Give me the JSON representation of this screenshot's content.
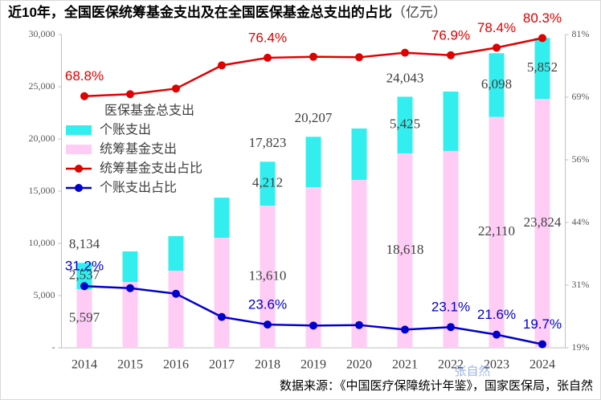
{
  "chart_data": {
    "type": "bar",
    "title": "近10年，全国医保统筹基金支出及在全国医保基金总支出的占比",
    "unit": "（亿元）",
    "source": "数据来源：《中国医疗保障统计年鉴》，国家医保局，张自然",
    "watermark": "张自然",
    "categories": [
      "2014",
      "2015",
      "2016",
      "2017",
      "2018",
      "2019",
      "2020",
      "2021",
      "2022",
      "2023",
      "2024"
    ],
    "ylim": [
      0,
      30000
    ],
    "yticks": [
      {
        "value": 0,
        "label": "-"
      },
      {
        "value": 5000,
        "label": "5,000"
      },
      {
        "value": 10000,
        "label": "10,000"
      },
      {
        "value": 15000,
        "label": "15,000"
      },
      {
        "value": 20000,
        "label": "20,000"
      },
      {
        "value": 25000,
        "label": "25,000"
      },
      {
        "value": 30000,
        "label": "30,000"
      }
    ],
    "y2lim": [
      19,
      81
    ],
    "y2ticks": [
      {
        "value": 19,
        "label": "19%"
      },
      {
        "value": 31.4,
        "label": "31%"
      },
      {
        "value": 43.8,
        "label": "44%"
      },
      {
        "value": 56.2,
        "label": "56%"
      },
      {
        "value": 68.6,
        "label": "69%"
      },
      {
        "value": 81,
        "label": "81%"
      }
    ],
    "series": [
      {
        "name": "医保基金总支出",
        "type": "total",
        "values": [
          8134,
          null,
          null,
          null,
          17823,
          20207,
          null,
          24043,
          null,
          null,
          null
        ],
        "value_labels": [
          "8,134",
          null,
          null,
          null,
          "17,823",
          "20,207",
          null,
          "24,043",
          null,
          null,
          null
        ]
      },
      {
        "name": "个账支出",
        "type": "bar",
        "color": "#33eeee",
        "values": [
          2537,
          2930,
          3310,
          3840,
          4212,
          4827,
          4920,
          5425,
          5690,
          6098,
          5852
        ],
        "value_labels": [
          "2,537",
          null,
          null,
          null,
          "4,212",
          null,
          null,
          "5,425",
          null,
          "6,098",
          "5,852"
        ]
      },
      {
        "name": "统筹基金支出",
        "type": "bar",
        "color": "#ffccf6",
        "values": [
          5597,
          6300,
          7380,
          10540,
          13610,
          15380,
          16080,
          18618,
          18850,
          22110,
          23824
        ],
        "value_labels": [
          "5,597",
          null,
          null,
          null,
          "13,610",
          null,
          null,
          "18,618",
          null,
          "22,110",
          "23,824"
        ]
      },
      {
        "name": "统筹基金支出占比",
        "type": "line",
        "axis": "y2",
        "color": "#e00000",
        "values": [
          68.8,
          69.2,
          70.3,
          74.9,
          76.4,
          76.6,
          76.5,
          77.4,
          76.9,
          78.4,
          80.3
        ],
        "value_labels": [
          "68.8%",
          null,
          null,
          null,
          "76.4%",
          null,
          null,
          null,
          "76.9%",
          "78.4%",
          "80.3%"
        ]
      },
      {
        "name": "个账支出占比",
        "type": "line",
        "axis": "y2",
        "color": "#0000cc",
        "values": [
          31.2,
          30.8,
          29.7,
          25.1,
          23.6,
          23.4,
          23.5,
          22.6,
          23.1,
          21.6,
          19.7
        ],
        "value_labels": [
          "31.2%",
          null,
          null,
          null,
          "23.6%",
          null,
          null,
          null,
          "23.1%",
          "21.6%",
          "19.7%"
        ]
      }
    ]
  }
}
